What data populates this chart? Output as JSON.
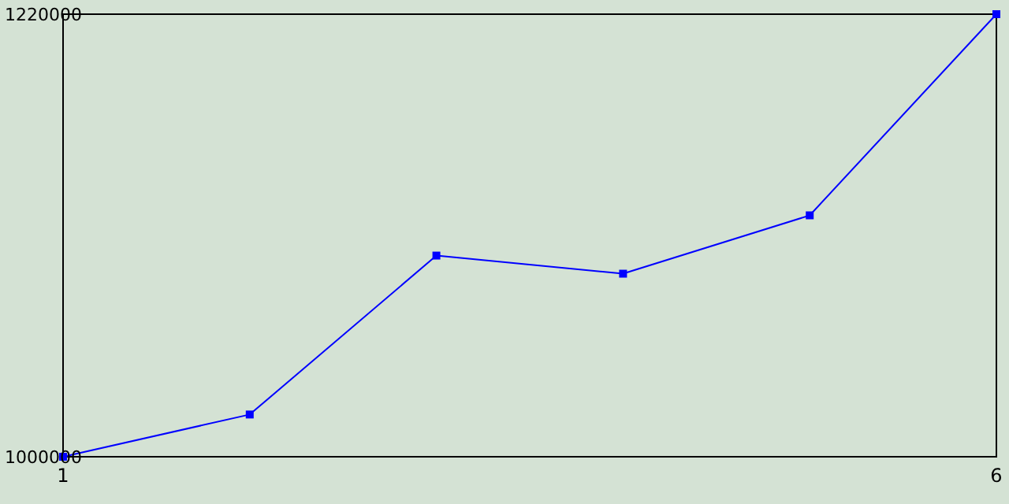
{
  "chart_data": {
    "type": "line",
    "x": [
      1,
      2,
      3,
      4,
      5,
      6
    ],
    "series": [
      {
        "color": "#0000ff",
        "values": [
          1000000,
          1021000,
          1100000,
          1091000,
          1120000,
          1220000
        ]
      }
    ],
    "xlim": [
      1,
      6
    ],
    "xticks": [
      1,
      6
    ],
    "ylim": [
      1000000,
      1220000
    ],
    "yticks": [
      1000000,
      1220000
    ],
    "marker": "square",
    "line_style": "solid"
  }
}
